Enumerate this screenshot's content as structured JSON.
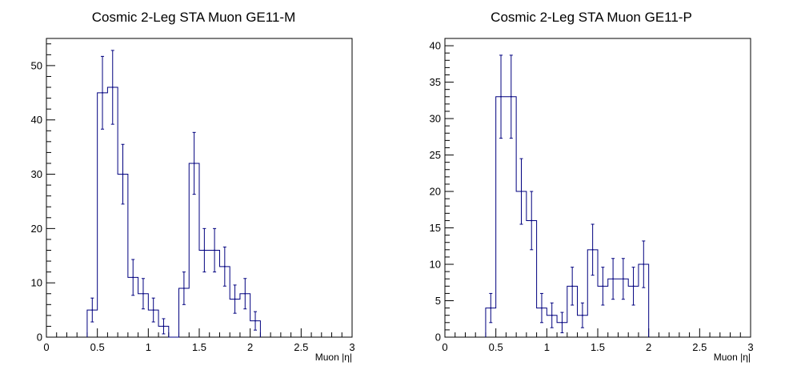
{
  "chart_data": [
    {
      "type": "histogram",
      "title": "Cosmic 2-Leg STA Muon GE11-M",
      "xlabel": "Muon |η|",
      "ylabel": "",
      "xlim": [
        0,
        3
      ],
      "ylim": [
        0,
        55
      ],
      "x_ticks": [
        "0",
        "0.5",
        "1",
        "1.5",
        "2",
        "2.5",
        "3"
      ],
      "x_tick_values": [
        0,
        0.5,
        1,
        1.5,
        2,
        2.5,
        3
      ],
      "y_ticks": [
        "0",
        "10",
        "20",
        "30",
        "40",
        "50"
      ],
      "y_tick_values": [
        0,
        10,
        20,
        30,
        40,
        50
      ],
      "bin_width": 0.1,
      "bins_low_edges": [
        0.4,
        0.5,
        0.6,
        0.7,
        0.8,
        0.9,
        1.0,
        1.1,
        1.2,
        1.3,
        1.4,
        1.5,
        1.6,
        1.7,
        1.8,
        1.9,
        2.0
      ],
      "values": [
        5,
        45,
        46,
        30,
        11,
        8,
        5,
        2,
        0,
        9,
        32,
        16,
        16,
        13,
        7,
        8,
        3
      ],
      "errors": [
        2.2,
        6.7,
        6.8,
        5.5,
        3.3,
        2.8,
        2.2,
        1.4,
        0,
        3,
        5.7,
        4,
        4,
        3.6,
        2.6,
        2.8,
        1.7
      ]
    },
    {
      "type": "histogram",
      "title": "Cosmic 2-Leg STA Muon GE11-P",
      "xlabel": "Muon |η|",
      "ylabel": "",
      "xlim": [
        0,
        3
      ],
      "ylim": [
        0,
        41
      ],
      "x_ticks": [
        "0",
        "0.5",
        "1",
        "1.5",
        "2",
        "2.5",
        "3"
      ],
      "x_tick_values": [
        0,
        0.5,
        1,
        1.5,
        2,
        2.5,
        3
      ],
      "y_ticks": [
        "0",
        "5",
        "10",
        "15",
        "20",
        "25",
        "30",
        "35",
        "40"
      ],
      "y_tick_values": [
        0,
        5,
        10,
        15,
        20,
        25,
        30,
        35,
        40
      ],
      "bin_width": 0.1,
      "bins_low_edges": [
        0.4,
        0.5,
        0.6,
        0.7,
        0.8,
        0.9,
        1.0,
        1.1,
        1.2,
        1.3,
        1.4,
        1.5,
        1.6,
        1.7,
        1.8,
        1.9
      ],
      "values": [
        4,
        33,
        33,
        20,
        16,
        4,
        3,
        2,
        7,
        3,
        12,
        7,
        8,
        8,
        7,
        10
      ],
      "errors": [
        2,
        5.7,
        5.7,
        4.5,
        4,
        2,
        1.7,
        1.4,
        2.6,
        1.7,
        3.5,
        2.6,
        2.8,
        2.8,
        2.6,
        3.2
      ]
    }
  ],
  "colors": {
    "line": "#00007f",
    "frame": "#000000",
    "background": "#ffffff"
  }
}
